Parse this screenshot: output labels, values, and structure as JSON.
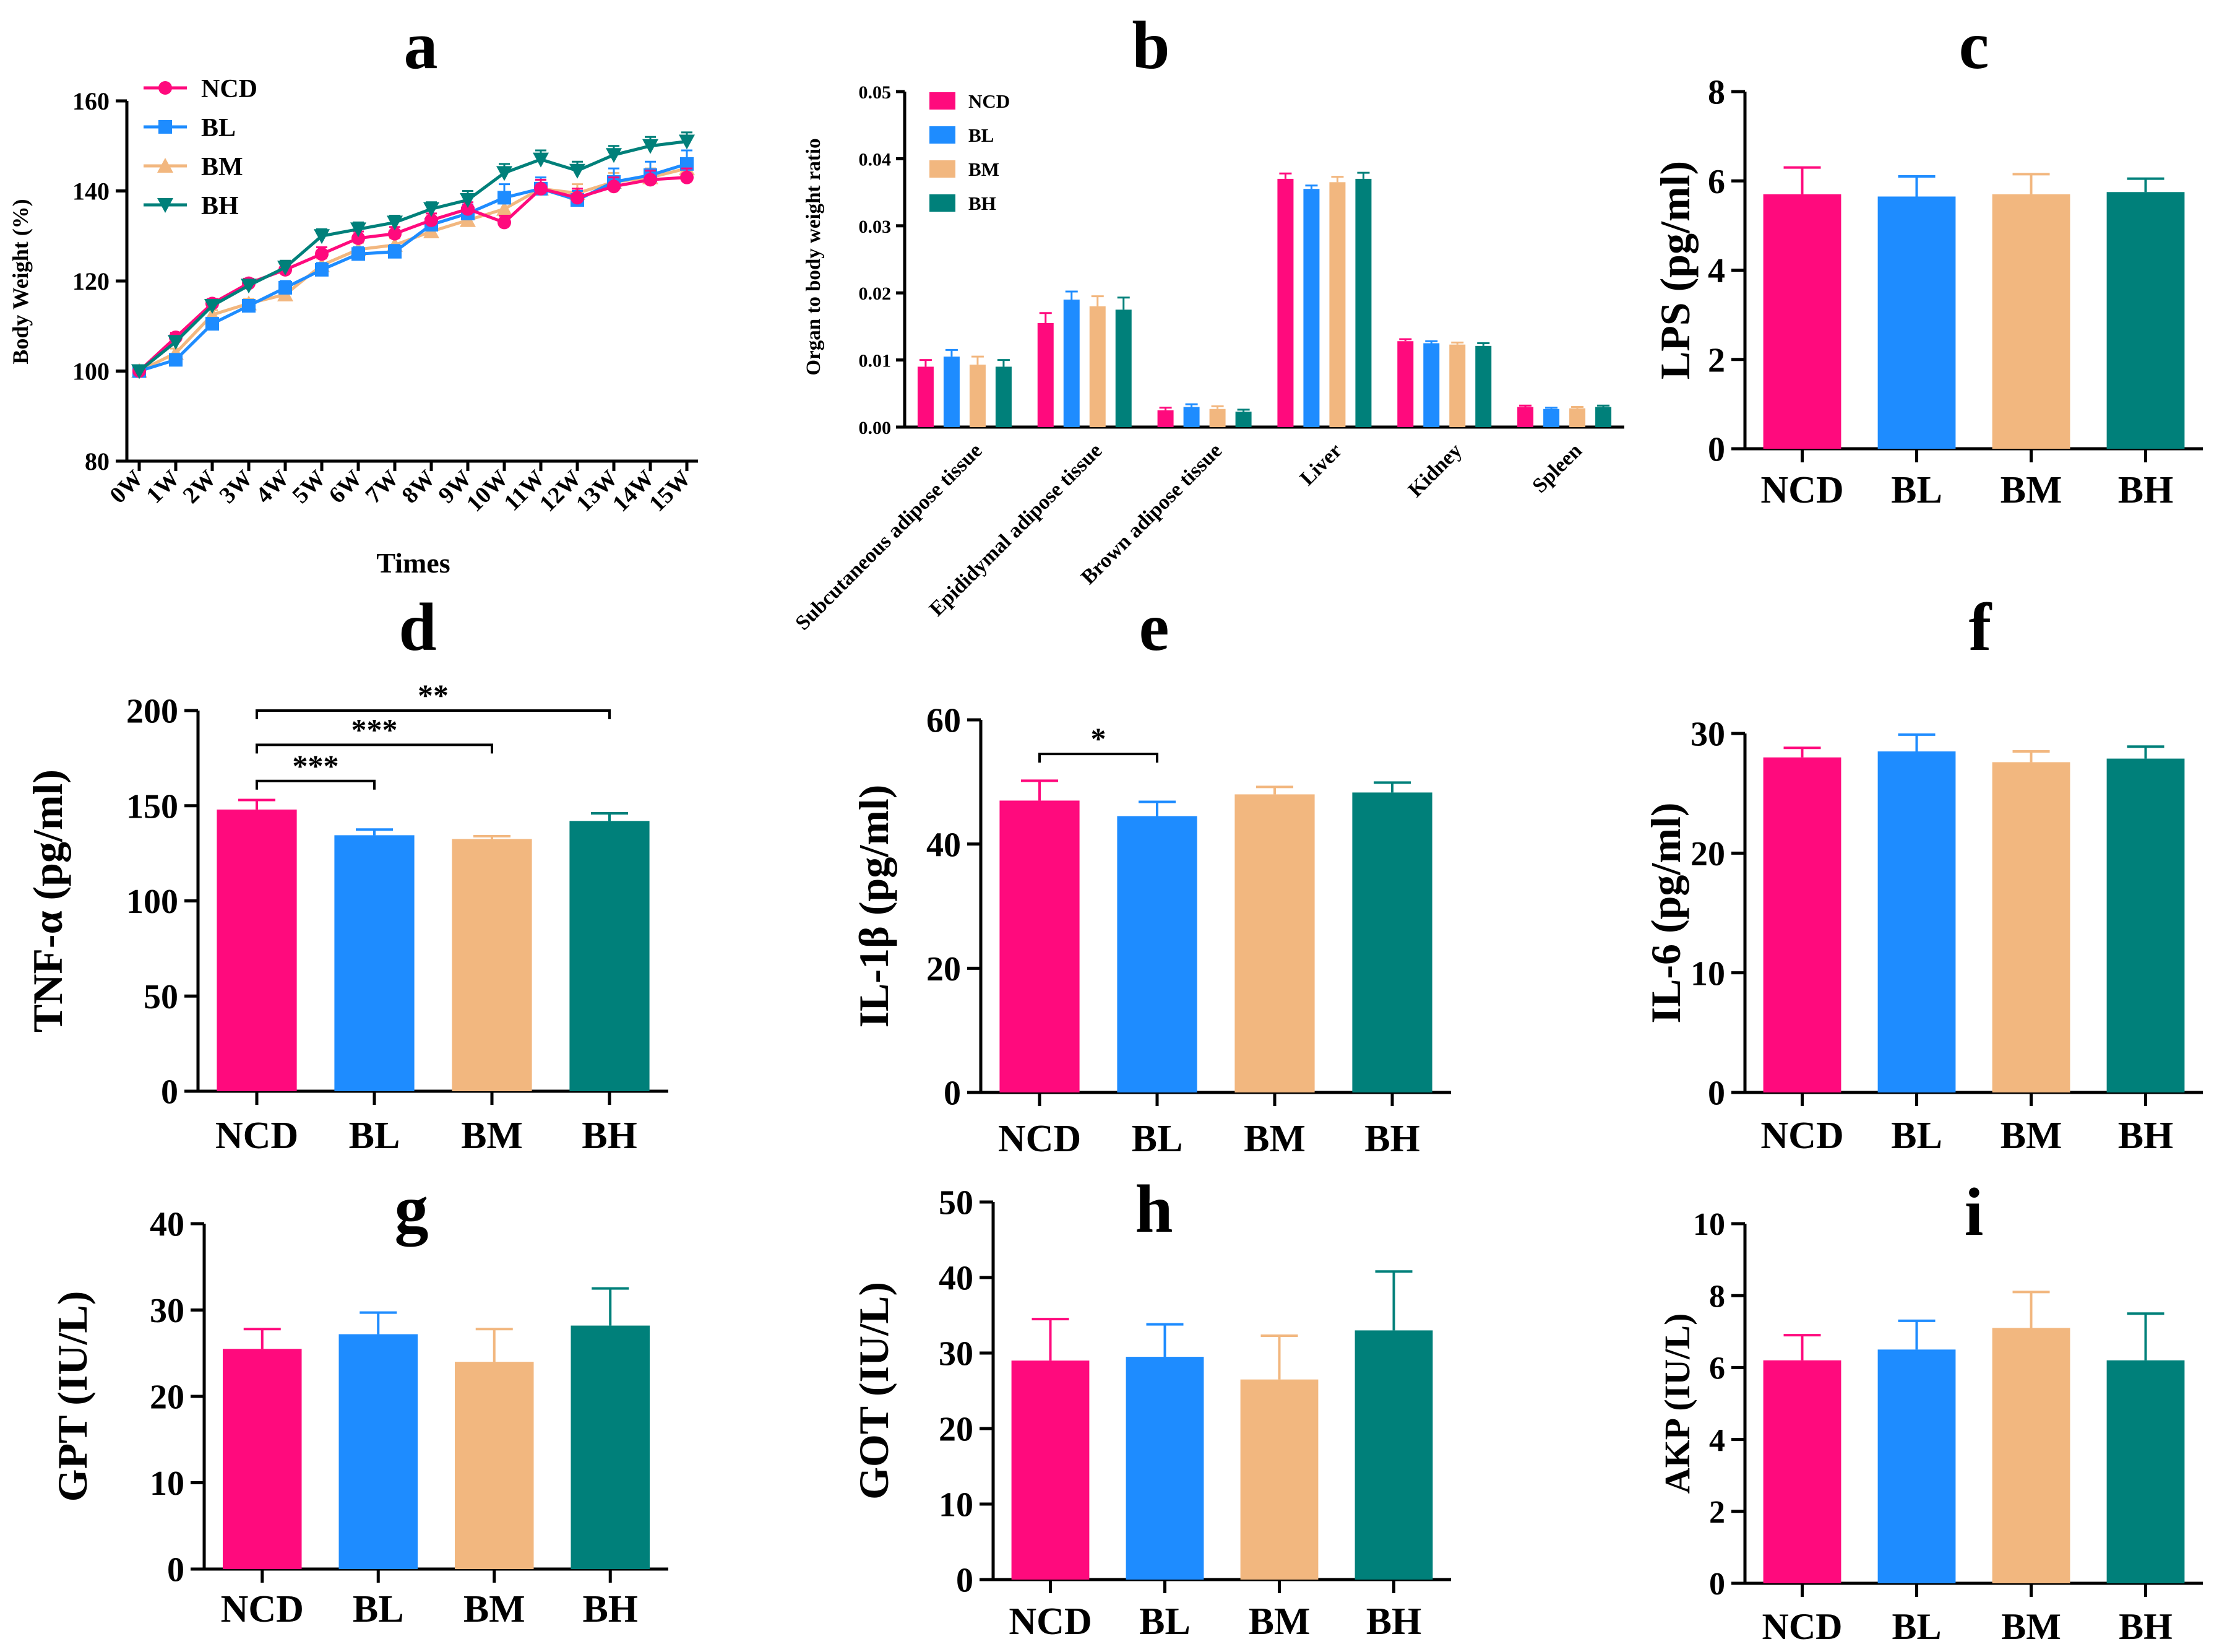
{
  "figure": {
    "colors": {
      "NCD": "#ff0a7d",
      "BL": "#1e8cff",
      "BM": "#f2b77f",
      "BH": "#00807a"
    }
  },
  "chart_data": [
    {
      "id": "a",
      "panel_label": "a",
      "type": "line",
      "title": "",
      "xlabel": "Times",
      "ylabel": "Body Weight (%)",
      "ylim": [
        80,
        160
      ],
      "yticks": [
        80,
        100,
        120,
        140,
        160
      ],
      "x": [
        "0W",
        "1W",
        "2W",
        "3W",
        "4W",
        "5W",
        "6W",
        "7W",
        "8W",
        "9W",
        "10W",
        "11W",
        "12W",
        "13W",
        "14W",
        "15W"
      ],
      "series": [
        {
          "name": "NCD",
          "marker": "circle",
          "values": [
            100,
            107.5,
            115,
            119.5,
            122.5,
            126,
            129.5,
            130.5,
            133.5,
            136,
            133,
            140.5,
            138.5,
            141,
            142.5,
            143
          ],
          "errors": [
            0.5,
            1,
            1,
            1,
            1.5,
            1.5,
            1.5,
            1.5,
            1.5,
            1.5,
            1.5,
            2,
            2,
            2,
            2,
            2
          ]
        },
        {
          "name": "BL",
          "marker": "square",
          "values": [
            100,
            102.5,
            110.5,
            114.5,
            118.5,
            122.5,
            126,
            126.5,
            132.5,
            135,
            138.5,
            140.5,
            138,
            142,
            143.5,
            146
          ],
          "errors": [
            0.5,
            1,
            1,
            1,
            1.5,
            1.5,
            1.5,
            1.5,
            1.5,
            2,
            3,
            2.5,
            2,
            3,
            3,
            3
          ]
        },
        {
          "name": "BM",
          "marker": "triangle-up",
          "values": [
            100,
            104,
            112.5,
            115,
            117,
            123.5,
            127,
            128,
            131,
            133.5,
            136,
            140.5,
            139.5,
            142,
            143,
            145
          ],
          "errors": [
            0.5,
            1,
            1,
            1,
            1.5,
            1.5,
            1.5,
            1.5,
            1.5,
            1.5,
            2,
            2,
            2,
            2,
            2,
            2
          ]
        },
        {
          "name": "BH",
          "marker": "triangle-down",
          "values": [
            100,
            106.5,
            114.5,
            119,
            123,
            130,
            131.5,
            133,
            136,
            138,
            144,
            147,
            144.5,
            148,
            150,
            151
          ],
          "errors": [
            0.5,
            1,
            1,
            1,
            1.5,
            1.5,
            1.5,
            1.5,
            1.5,
            2,
            2,
            2,
            2,
            2,
            2,
            2
          ]
        }
      ],
      "legend": "top-left"
    },
    {
      "id": "b",
      "panel_label": "b",
      "type": "bar",
      "title": "",
      "xlabel": "",
      "ylabel": "Organ to body weight ratio",
      "ylim": [
        0,
        0.05
      ],
      "yticks": [
        0,
        0.01,
        0.02,
        0.03,
        0.04,
        0.05
      ],
      "ytick_labels": [
        "0.00",
        "0.01",
        "0.02",
        "0.03",
        "0.04",
        "0.05"
      ],
      "categories": [
        "Subcutaneous adipose tissue",
        "Epididymal adipose tissue",
        "Brown adipose tissue",
        "Liver",
        "Kidney",
        "Spleen"
      ],
      "series": [
        {
          "name": "NCD",
          "values": [
            0.009,
            0.0155,
            0.0025,
            0.037,
            0.0128,
            0.003
          ],
          "errors": [
            0.001,
            0.0015,
            0.0004,
            0.0008,
            0.0003,
            0.0002
          ]
        },
        {
          "name": "BL",
          "values": [
            0.0105,
            0.019,
            0.003,
            0.0355,
            0.0125,
            0.0027
          ],
          "errors": [
            0.001,
            0.0012,
            0.0004,
            0.0005,
            0.0003,
            0.0002
          ]
        },
        {
          "name": "BM",
          "values": [
            0.0093,
            0.018,
            0.0027,
            0.0365,
            0.0123,
            0.0028
          ],
          "errors": [
            0.0012,
            0.0015,
            0.0004,
            0.0008,
            0.0003,
            0.0002
          ]
        },
        {
          "name": "BH",
          "values": [
            0.009,
            0.0175,
            0.0023,
            0.037,
            0.0121,
            0.003
          ],
          "errors": [
            0.001,
            0.0018,
            0.0003,
            0.0009,
            0.0004,
            0.0002
          ]
        }
      ],
      "legend": "top-left"
    },
    {
      "id": "c",
      "panel_label": "c",
      "type": "bar",
      "title": "",
      "xlabel": "",
      "ylabel": "LPS (pg/ml)",
      "ylim": [
        0,
        8
      ],
      "yticks": [
        0,
        2,
        4,
        6,
        8
      ],
      "categories": [
        "NCD",
        "BL",
        "BM",
        "BH"
      ],
      "values": [
        5.7,
        5.65,
        5.7,
        5.75
      ],
      "errors": [
        0.6,
        0.45,
        0.45,
        0.3
      ],
      "significance": []
    },
    {
      "id": "d",
      "panel_label": "d",
      "type": "bar",
      "title": "",
      "xlabel": "",
      "ylabel": "TNF-α (pg/ml)",
      "ylim": [
        0,
        200
      ],
      "yticks": [
        0,
        50,
        100,
        150,
        200
      ],
      "categories": [
        "NCD",
        "BL",
        "BM",
        "BH"
      ],
      "values": [
        148,
        134.5,
        132.5,
        142
      ],
      "errors": [
        5,
        3,
        1.5,
        4
      ],
      "significance": [
        {
          "from": "NCD",
          "to": "BL",
          "label": "***",
          "y": 163
        },
        {
          "from": "NCD",
          "to": "BM",
          "label": "***",
          "y": 182
        },
        {
          "from": "NCD",
          "to": "BH",
          "label": "**",
          "y": 200
        }
      ]
    },
    {
      "id": "e",
      "panel_label": "e",
      "type": "bar",
      "title": "",
      "xlabel": "",
      "ylabel": "IL-1β (pg/ml)",
      "ylim": [
        0,
        60
      ],
      "yticks": [
        0,
        20,
        40,
        60
      ],
      "categories": [
        "NCD",
        "BL",
        "BM",
        "BH"
      ],
      "values": [
        47,
        44.5,
        48,
        48.3
      ],
      "errors": [
        3.2,
        2.3,
        1.2,
        1.6
      ],
      "significance": [
        {
          "from": "NCD",
          "to": "BL",
          "label": "*",
          "y": 54.5
        }
      ]
    },
    {
      "id": "f",
      "panel_label": "f",
      "type": "bar",
      "title": "",
      "xlabel": "",
      "ylabel": "IL-6 (pg/ml)",
      "ylim": [
        0,
        30
      ],
      "yticks": [
        0,
        10,
        20,
        30
      ],
      "categories": [
        "NCD",
        "BL",
        "BM",
        "BH"
      ],
      "values": [
        28,
        28.5,
        27.6,
        27.9
      ],
      "errors": [
        0.8,
        1.4,
        0.9,
        1
      ],
      "significance": []
    },
    {
      "id": "g",
      "panel_label": "g",
      "type": "bar",
      "title": "",
      "xlabel": "",
      "ylabel": "GPT (IU/L)",
      "ylim": [
        0,
        40
      ],
      "yticks": [
        0,
        10,
        20,
        30,
        40
      ],
      "categories": [
        "NCD",
        "BL",
        "BM",
        "BH"
      ],
      "values": [
        25.5,
        27.2,
        24,
        28.2
      ],
      "errors": [
        2.3,
        2.5,
        3.8,
        4.3
      ],
      "significance": []
    },
    {
      "id": "h",
      "panel_label": "h",
      "type": "bar",
      "title": "",
      "xlabel": "",
      "ylabel": "GOT (IU/L)",
      "ylim": [
        0,
        50
      ],
      "yticks": [
        0,
        10,
        20,
        30,
        40,
        50
      ],
      "categories": [
        "NCD",
        "BL",
        "BM",
        "BH"
      ],
      "values": [
        29,
        29.5,
        26.5,
        33
      ],
      "errors": [
        5.5,
        4.3,
        5.8,
        7.8
      ],
      "significance": []
    },
    {
      "id": "i",
      "panel_label": "i",
      "type": "bar",
      "title": "",
      "xlabel": "",
      "ylabel": "AKP (IU/L)",
      "ylim": [
        0,
        10
      ],
      "yticks": [
        0,
        2,
        4,
        6,
        8,
        10
      ],
      "categories": [
        "NCD",
        "BL",
        "BM",
        "BH"
      ],
      "values": [
        6.2,
        6.5,
        7.1,
        6.2
      ],
      "errors": [
        0.7,
        0.8,
        1,
        1.3
      ],
      "significance": []
    }
  ]
}
